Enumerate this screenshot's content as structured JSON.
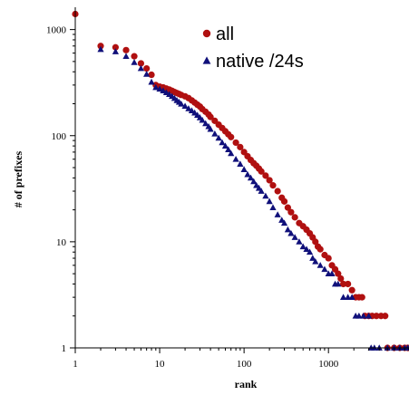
{
  "chart_data": {
    "type": "scatter",
    "title": "",
    "xlabel": "rank",
    "ylabel": "# of prefixes",
    "xscale": "log",
    "yscale": "log",
    "xlim": [
      1,
      9000
    ],
    "ylim": [
      1,
      1500
    ],
    "x_ticks": [
      1,
      10,
      100,
      1000
    ],
    "x_tick_labels": [
      "1",
      "10",
      "100",
      "1000"
    ],
    "y_ticks": [
      1,
      10,
      100,
      1000
    ],
    "y_tick_labels": [
      "1",
      "10",
      "100",
      "1000"
    ],
    "grid": false,
    "legend_position": "top-center",
    "series": [
      {
        "name": "all",
        "marker": "circle",
        "color": "#b01010",
        "points": [
          [
            1,
            1400
          ],
          [
            2,
            700
          ],
          [
            3,
            680
          ],
          [
            4,
            640
          ],
          [
            5,
            560
          ],
          [
            6,
            480
          ],
          [
            7,
            430
          ],
          [
            8,
            375
          ],
          [
            9,
            300
          ],
          [
            10,
            290
          ],
          [
            11,
            285
          ],
          [
            12,
            278
          ],
          [
            13,
            272
          ],
          [
            14,
            265
          ],
          [
            15,
            258
          ],
          [
            16,
            252
          ],
          [
            17,
            247
          ],
          [
            18,
            242
          ],
          [
            20,
            235
          ],
          [
            22,
            226
          ],
          [
            24,
            215
          ],
          [
            26,
            205
          ],
          [
            28,
            196
          ],
          [
            30,
            188
          ],
          [
            32,
            178
          ],
          [
            35,
            168
          ],
          [
            38,
            158
          ],
          [
            40,
            150
          ],
          [
            45,
            138
          ],
          [
            50,
            127
          ],
          [
            55,
            118
          ],
          [
            60,
            110
          ],
          [
            65,
            103
          ],
          [
            70,
            97
          ],
          [
            80,
            86
          ],
          [
            90,
            78
          ],
          [
            100,
            70
          ],
          [
            110,
            64
          ],
          [
            120,
            59
          ],
          [
            130,
            55
          ],
          [
            140,
            52
          ],
          [
            150,
            49
          ],
          [
            160,
            46
          ],
          [
            180,
            42
          ],
          [
            200,
            38
          ],
          [
            220,
            34
          ],
          [
            250,
            30
          ],
          [
            280,
            26
          ],
          [
            300,
            24
          ],
          [
            330,
            21
          ],
          [
            360,
            19
          ],
          [
            400,
            17
          ],
          [
            450,
            15
          ],
          [
            500,
            14
          ],
          [
            550,
            13
          ],
          [
            600,
            12
          ],
          [
            650,
            11
          ],
          [
            700,
            10
          ],
          [
            750,
            9
          ],
          [
            800,
            8.5
          ],
          [
            900,
            7.5
          ],
          [
            1000,
            7
          ],
          [
            1100,
            6
          ],
          [
            1200,
            5.5
          ],
          [
            1300,
            5
          ],
          [
            1400,
            4.5
          ],
          [
            1500,
            4
          ],
          [
            1700,
            4
          ],
          [
            1900,
            3.5
          ],
          [
            2100,
            3
          ],
          [
            2300,
            3
          ],
          [
            2500,
            3
          ],
          [
            2700,
            2
          ],
          [
            3000,
            2
          ],
          [
            3300,
            2
          ],
          [
            3700,
            2
          ],
          [
            4200,
            2
          ],
          [
            4700,
            2
          ],
          [
            5000,
            1
          ],
          [
            6000,
            1
          ],
          [
            7000,
            1
          ],
          [
            8000,
            1
          ],
          [
            8700,
            1
          ]
        ]
      },
      {
        "name": "native /24s",
        "marker": "triangle",
        "color": "#10107a",
        "points": [
          [
            2,
            650
          ],
          [
            3,
            620
          ],
          [
            4,
            560
          ],
          [
            5,
            490
          ],
          [
            6,
            430
          ],
          [
            7,
            380
          ],
          [
            8,
            320
          ],
          [
            9,
            285
          ],
          [
            10,
            275
          ],
          [
            11,
            265
          ],
          [
            12,
            255
          ],
          [
            13,
            245
          ],
          [
            14,
            235
          ],
          [
            15,
            225
          ],
          [
            16,
            215
          ],
          [
            17,
            207
          ],
          [
            18,
            199
          ],
          [
            20,
            190
          ],
          [
            22,
            180
          ],
          [
            24,
            172
          ],
          [
            26,
            164
          ],
          [
            28,
            156
          ],
          [
            30,
            148
          ],
          [
            32,
            140
          ],
          [
            35,
            130
          ],
          [
            38,
            122
          ],
          [
            40,
            115
          ],
          [
            45,
            104
          ],
          [
            50,
            95
          ],
          [
            55,
            86
          ],
          [
            60,
            80
          ],
          [
            65,
            74
          ],
          [
            70,
            68
          ],
          [
            80,
            60
          ],
          [
            90,
            54
          ],
          [
            100,
            48
          ],
          [
            110,
            43
          ],
          [
            120,
            40
          ],
          [
            130,
            37
          ],
          [
            140,
            34
          ],
          [
            150,
            32
          ],
          [
            160,
            30
          ],
          [
            180,
            27
          ],
          [
            200,
            24
          ],
          [
            220,
            21
          ],
          [
            250,
            18
          ],
          [
            280,
            16
          ],
          [
            300,
            15
          ],
          [
            330,
            13
          ],
          [
            360,
            12
          ],
          [
            400,
            11
          ],
          [
            450,
            10
          ],
          [
            500,
            9
          ],
          [
            550,
            8.5
          ],
          [
            600,
            8
          ],
          [
            650,
            7
          ],
          [
            700,
            6.5
          ],
          [
            800,
            6
          ],
          [
            900,
            5.5
          ],
          [
            1000,
            5
          ],
          [
            1100,
            5
          ],
          [
            1200,
            4
          ],
          [
            1300,
            4
          ],
          [
            1500,
            3
          ],
          [
            1700,
            3
          ],
          [
            1900,
            3
          ],
          [
            2100,
            2
          ],
          [
            2300,
            2
          ],
          [
            2600,
            2
          ],
          [
            3000,
            2
          ],
          [
            3200,
            1
          ],
          [
            3500,
            1
          ],
          [
            4000,
            1
          ],
          [
            5000,
            1
          ],
          [
            6000,
            1
          ],
          [
            7000,
            1
          ],
          [
            8000,
            1
          ],
          [
            8700,
            1
          ]
        ]
      }
    ]
  }
}
